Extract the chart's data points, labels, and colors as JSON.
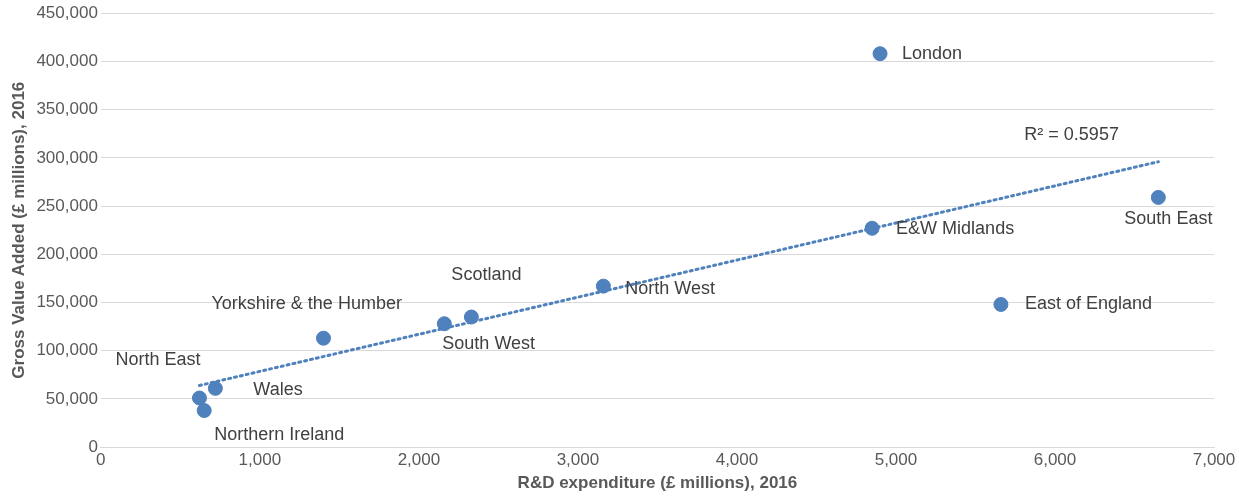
{
  "chart_data": {
    "type": "scatter",
    "xlabel": "R&D expenditure (£ millions), 2016",
    "ylabel": "Gross Value Added (£ millions), 2016",
    "xlim": [
      0,
      7000
    ],
    "xticks": [
      {
        "value": 0,
        "label": "0"
      },
      {
        "value": 1000,
        "label": "1,000"
      },
      {
        "value": 2000,
        "label": "2,000"
      },
      {
        "value": 3000,
        "label": "3,000"
      },
      {
        "value": 4000,
        "label": "4,000"
      },
      {
        "value": 5000,
        "label": "5,000"
      },
      {
        "value": 6000,
        "label": "6,000"
      },
      {
        "value": 7000,
        "label": "7,000"
      }
    ],
    "ylim": [
      0,
      450000
    ],
    "yticks": [
      {
        "value": 0,
        "label": "0"
      },
      {
        "value": 50000,
        "label": "50,000"
      },
      {
        "value": 100000,
        "label": "100,000"
      },
      {
        "value": 150000,
        "label": "150,000"
      },
      {
        "value": 200000,
        "label": "200,000"
      },
      {
        "value": 250000,
        "label": "250,000"
      },
      {
        "value": 300000,
        "label": "300,000"
      },
      {
        "value": 350000,
        "label": "350,000"
      },
      {
        "value": 400000,
        "label": "400,000"
      },
      {
        "value": 450000,
        "label": "450,000"
      }
    ],
    "grid": "y",
    "legend": false,
    "marker": "circle",
    "series": [
      {
        "type": "scatter",
        "color": "#4f81bd",
        "x": [
          4900,
          6650,
          4850,
          5660,
          3160,
          2330,
          2160,
          1400,
          720,
          620,
          650
        ],
        "values": [
          408000,
          259000,
          227000,
          148000,
          167000,
          135000,
          128000,
          113000,
          61000,
          51000,
          38000
        ]
      },
      {
        "type": "line",
        "color": "#4f81bd",
        "line_style": "dotted",
        "marker": "none",
        "x": [
          620,
          6650
        ],
        "values": [
          64000,
          296000
        ]
      }
    ],
    "annotations": [
      {
        "text": "London",
        "x": 4900,
        "y": 408000
      },
      {
        "text": "South East",
        "x": 6650,
        "y": 259000
      },
      {
        "text": "E&W Midlands",
        "x": 4850,
        "y": 227000
      },
      {
        "text": "East of England",
        "x": 5660,
        "y": 148000
      },
      {
        "text": "North West",
        "x": 3160,
        "y": 167000
      },
      {
        "text": "Scotland",
        "x": 2330,
        "y": 135000
      },
      {
        "text": "South West",
        "x": 2160,
        "y": 128000
      },
      {
        "text": "Yorkshire & the Humber",
        "x": 1400,
        "y": 113000
      },
      {
        "text": "Wales",
        "x": 720,
        "y": 61000
      },
      {
        "text": "North East",
        "x": 620,
        "y": 51000
      },
      {
        "text": "Northern Ireland",
        "x": 650,
        "y": 38000
      },
      {
        "text": "R² = 0.5957",
        "x": 6650,
        "y": 296000
      }
    ]
  }
}
